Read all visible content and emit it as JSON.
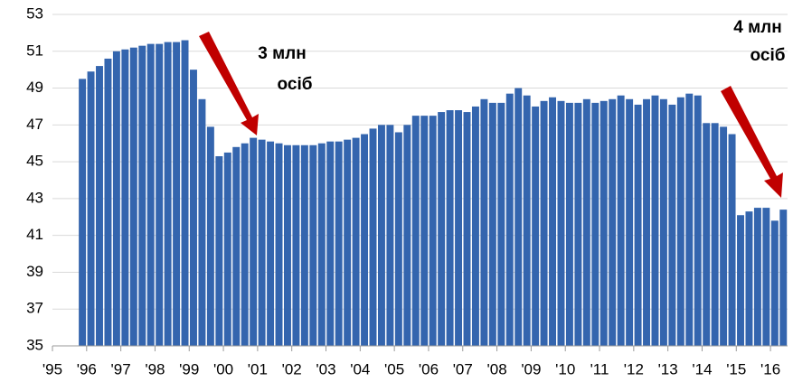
{
  "chart_data": {
    "type": "bar",
    "categories": [
      "'95",
      null,
      null,
      null,
      "'96",
      null,
      null,
      null,
      "'97",
      null,
      null,
      null,
      "'98",
      null,
      null,
      null,
      "'99",
      null,
      null,
      null,
      "'00",
      null,
      null,
      null,
      "'01",
      null,
      null,
      null,
      "'02",
      null,
      null,
      null,
      "'03",
      null,
      null,
      null,
      "'04",
      null,
      null,
      null,
      "'05",
      null,
      null,
      null,
      "'06",
      null,
      null,
      null,
      "'07",
      null,
      null,
      null,
      "'08",
      null,
      null,
      null,
      "'09",
      null,
      null,
      null,
      "'10",
      null,
      null,
      null,
      "'11",
      null,
      null,
      null,
      "'12",
      null,
      null,
      null,
      "'13",
      null,
      null,
      null,
      "'14",
      null,
      null,
      null,
      "'15",
      null,
      null,
      null,
      "'16",
      null
    ],
    "values": [
      null,
      null,
      null,
      49.5,
      49.9,
      50.2,
      50.6,
      51.0,
      51.1,
      51.2,
      51.3,
      51.4,
      51.4,
      51.5,
      51.5,
      51.6,
      50.0,
      48.4,
      46.9,
      45.3,
      45.5,
      45.8,
      46.0,
      46.3,
      46.2,
      46.1,
      46.0,
      45.9,
      45.9,
      45.9,
      45.9,
      46.0,
      46.1,
      46.1,
      46.2,
      46.3,
      46.5,
      46.8,
      47.0,
      47.0,
      46.6,
      47.0,
      47.5,
      47.5,
      47.5,
      47.7,
      47.8,
      47.8,
      47.7,
      48.0,
      48.4,
      48.2,
      48.2,
      48.7,
      49.0,
      48.6,
      48.0,
      48.3,
      48.5,
      48.3,
      48.2,
      48.2,
      48.4,
      48.2,
      48.3,
      48.4,
      48.6,
      48.4,
      48.1,
      48.4,
      48.6,
      48.4,
      48.1,
      48.5,
      48.7,
      48.6,
      47.1,
      47.1,
      46.9,
      46.5,
      42.1,
      42.3,
      42.5,
      42.5,
      41.8,
      42.4
    ],
    "color": "#3465ae",
    "ylim": [
      35,
      53
    ],
    "yticks": [
      35,
      37,
      39,
      41,
      43,
      45,
      47,
      49,
      51,
      53
    ],
    "grid": true,
    "annotations": [
      [
        "3 млн",
        "осіб"
      ],
      [
        "4 млн",
        "осіб"
      ]
    ]
  }
}
